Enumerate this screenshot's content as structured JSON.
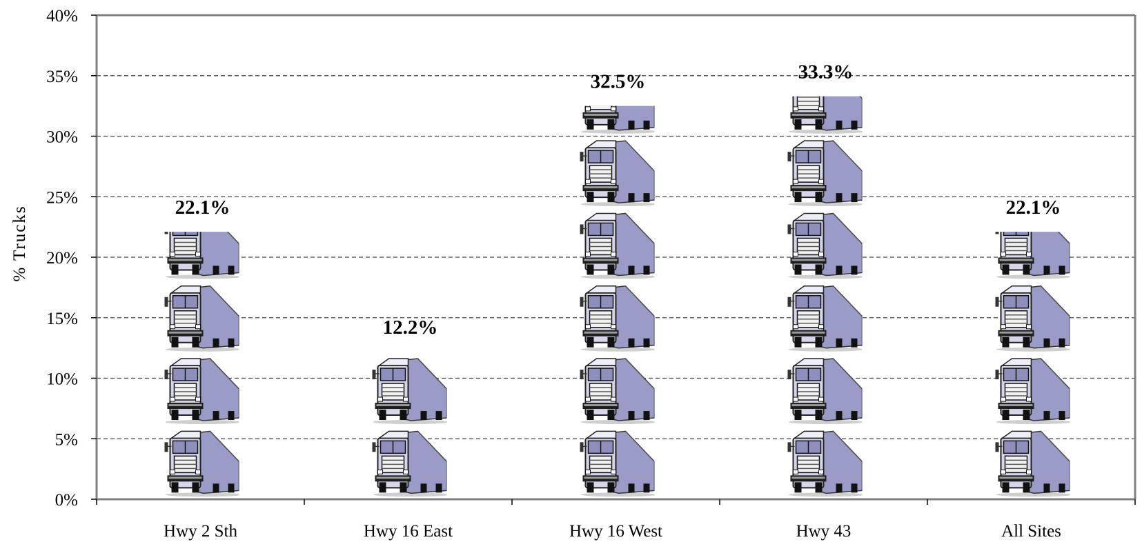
{
  "chart_data": {
    "type": "bar",
    "categories": [
      "Hwy 2 Sth",
      "Hwy 16 East",
      "Hwy 16 West",
      "Hwy 43",
      "All Sites"
    ],
    "values": [
      22.1,
      12.2,
      32.5,
      33.3,
      22.1
    ],
    "data_labels": [
      "22.1%",
      "12.2%",
      "32.5%",
      "33.3%",
      "22.1%"
    ],
    "title": "",
    "xlabel": "",
    "ylabel": "% Trucks",
    "ylim": [
      0,
      40
    ],
    "yticks": [
      0,
      5,
      10,
      15,
      20,
      25,
      30,
      35,
      40
    ],
    "ytick_labels": [
      "0%",
      "5%",
      "10%",
      "15%",
      "20%",
      "25%",
      "30%",
      "35%",
      "40%"
    ],
    "grid": "horizontal dashed",
    "bar_style": "pictograph",
    "pictogram_icon": "truck-icon",
    "pictogram_unit": 6,
    "colors": {
      "trailer": "#9b9bc7",
      "cab": "#dcdcef",
      "dark": "#222222",
      "grid": "#444444",
      "axis": "#808080"
    }
  }
}
